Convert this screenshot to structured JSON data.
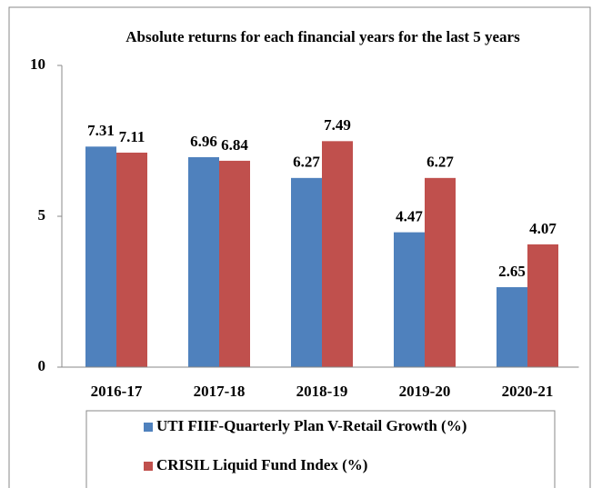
{
  "chart_data": {
    "type": "bar",
    "title": "Absolute returns for each financial years for the last 5 years",
    "categories": [
      "2016-17",
      "2017-18",
      "2018-19",
      "2019-20",
      "2020-21"
    ],
    "series": [
      {
        "name": "UTI FIIF-Quarterly Plan V-Retail Growth (%)",
        "color": "#4f81bd",
        "values": [
          7.31,
          6.96,
          6.27,
          4.47,
          2.65
        ]
      },
      {
        "name": "CRISIL Liquid Fund Index (%)",
        "color": "#c0504d",
        "values": [
          7.11,
          6.84,
          7.49,
          6.27,
          4.07
        ]
      }
    ],
    "ylim": [
      0,
      10
    ],
    "yticks": [
      0,
      5,
      10
    ],
    "legend": "bottom"
  }
}
